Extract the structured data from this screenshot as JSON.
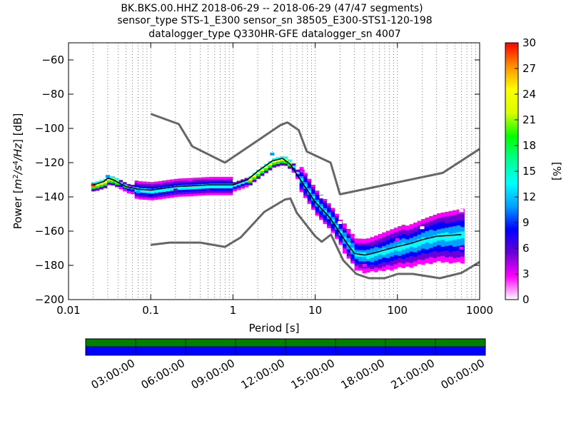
{
  "title_lines": [
    "BK.BKS.00.HHZ   2018-06-29 -- 2018-06-29  (47/47 segments)",
    "sensor_type STS-1_E300 sensor_sn 38505_E300-STS1-120-198",
    "datalogger_type Q330HR-GFE datalogger_sn 4007"
  ],
  "chart_data": [
    {
      "type": "heatmap",
      "xlabel": "Period [s]",
      "ylabel": "Power [m²/s⁴/Hz] [dB]",
      "ylabel_parts": {
        "prefix": "Power [",
        "main": "m",
        "sup1": "2",
        "mid": "/s",
        "sup2": "4",
        "tail": "/Hz",
        "suffix": "] [dB]"
      },
      "x_scale": "log",
      "xlim": [
        0.01,
        1000
      ],
      "ylim": [
        -200,
        -50
      ],
      "x_ticks": [
        {
          "v": 0.01,
          "label": "0.01"
        },
        {
          "v": 0.1,
          "label": "0.1"
        },
        {
          "v": 1,
          "label": "1"
        },
        {
          "v": 10,
          "label": "10"
        },
        {
          "v": 100,
          "label": "100"
        },
        {
          "v": 1000,
          "label": "1000"
        }
      ],
      "y_ticks": [
        {
          "v": -60,
          "label": "−60"
        },
        {
          "v": -80,
          "label": "−80"
        },
        {
          "v": -100,
          "label": "−100"
        },
        {
          "v": -120,
          "label": "−120"
        },
        {
          "v": -140,
          "label": "−140"
        },
        {
          "v": -160,
          "label": "−160"
        },
        {
          "v": -180,
          "label": "−180"
        },
        {
          "v": -200,
          "label": "−200"
        }
      ],
      "grid": "dotted vertical at log minor and major ticks",
      "colorbar": {
        "label": "[%]",
        "range": [
          0,
          30
        ],
        "ticks": [
          {
            "v": 0,
            "label": "0"
          },
          {
            "v": 3,
            "label": "3"
          },
          {
            "v": 6,
            "label": "6"
          },
          {
            "v": 9,
            "label": "9"
          },
          {
            "v": 12,
            "label": "12"
          },
          {
            "v": 15,
            "label": "15"
          },
          {
            "v": 18,
            "label": "18"
          },
          {
            "v": 21,
            "label": "21"
          },
          {
            "v": 24,
            "label": "24"
          },
          {
            "v": 27,
            "label": "27"
          },
          {
            "v": 30,
            "label": "30"
          }
        ],
        "colors": [
          "#ffffff",
          "#ff00ff",
          "#6a00d6",
          "#0000ff",
          "#00a0ff",
          "#00ffff",
          "#00ff90",
          "#00ff00",
          "#d8ff00",
          "#ffff00",
          "#ff9000",
          "#ff0000"
        ]
      },
      "series": [
        {
          "role": "noise model high",
          "color": "#666666",
          "points": [
            [
              0.1,
              -91.5
            ],
            [
              0.22,
              -97.5
            ],
            [
              0.32,
              -110.5
            ],
            [
              0.8,
              -120
            ],
            [
              3.8,
              -98
            ],
            [
              4.6,
              -96.5
            ],
            [
              6.3,
              -101
            ],
            [
              7.9,
              -113.5
            ],
            [
              15.4,
              -120
            ],
            [
              20,
              -138.5
            ],
            [
              354.8,
              -126
            ],
            [
              1000,
              -112
            ]
          ]
        },
        {
          "role": "noise model low",
          "color": "#666666",
          "points": [
            [
              0.1,
              -168
            ],
            [
              0.17,
              -166.7
            ],
            [
              0.4,
              -166.7
            ],
            [
              0.8,
              -169.2
            ],
            [
              1.24,
              -163.7
            ],
            [
              2.4,
              -148.8
            ],
            [
              4.3,
              -141.5
            ],
            [
              5,
              -141
            ],
            [
              6,
              -149.4
            ],
            [
              10,
              -163
            ],
            [
              12,
              -166.2
            ],
            [
              15.6,
              -162
            ],
            [
              21.9,
              -177
            ],
            [
              31.6,
              -185
            ],
            [
              45,
              -187.5
            ],
            [
              70,
              -187.5
            ],
            [
              101,
              -185
            ],
            [
              154,
              -185
            ],
            [
              328,
              -187.5
            ],
            [
              600,
              -184.4
            ],
            [
              1000,
              -178
            ]
          ]
        },
        {
          "role": "mode",
          "color": "#000000",
          "points": [
            [
              0.02,
              -133
            ],
            [
              0.027,
              -131
            ],
            [
              0.03,
              -129
            ],
            [
              0.035,
              -130
            ],
            [
              0.05,
              -134
            ],
            [
              0.07,
              -135.5
            ],
            [
              0.1,
              -136
            ],
            [
              0.2,
              -134
            ],
            [
              0.5,
              -133
            ],
            [
              1,
              -133
            ],
            [
              1.5,
              -130
            ],
            [
              2,
              -125
            ],
            [
              3,
              -119
            ],
            [
              4,
              -117.5
            ],
            [
              5,
              -121
            ],
            [
              6,
              -127
            ],
            [
              8,
              -136
            ],
            [
              10,
              -143
            ],
            [
              15,
              -152
            ],
            [
              20,
              -161
            ],
            [
              25,
              -168
            ],
            [
              30,
              -173
            ],
            [
              40,
              -174
            ],
            [
              50,
              -173
            ],
            [
              70,
              -171
            ],
            [
              100,
              -169
            ],
            [
              150,
              -167
            ],
            [
              200,
              -165
            ],
            [
              300,
              -163
            ],
            [
              600,
              -162
            ]
          ]
        }
      ],
      "density": [
        {
          "x": 0.02,
          "y": -133,
          "p": 30
        },
        {
          "x": 0.03,
          "y": -128,
          "p": 12
        },
        {
          "x": 0.05,
          "y": -134,
          "p": 20
        },
        {
          "x": 0.07,
          "y": -137,
          "p": 12
        },
        {
          "x": 0.1,
          "y": -139,
          "p": 8
        },
        {
          "x": 0.2,
          "y": -136,
          "p": 5
        },
        {
          "x": 0.3,
          "y": -130,
          "p": 3
        },
        {
          "x": 0.5,
          "y": -136,
          "p": 5
        },
        {
          "x": 3,
          "y": -115,
          "p": 12
        },
        {
          "x": 7,
          "y": -125,
          "p": 2
        },
        {
          "x": 12,
          "y": -140,
          "p": 1
        },
        {
          "x": 20,
          "y": -155,
          "p": 1
        },
        {
          "x": 40,
          "y": -180,
          "p": 3
        },
        {
          "x": 100,
          "y": -165,
          "p": 2
        },
        {
          "x": 200,
          "y": -158,
          "p": 1
        },
        {
          "x": 600,
          "y": -148,
          "p": 1
        },
        {
          "x": 600,
          "y": -170,
          "p": 3
        }
      ]
    },
    {
      "type": "timeline",
      "ticks": [
        "03:00:00",
        "06:00:00",
        "09:00:00",
        "12:00:00",
        "15:00:00",
        "18:00:00",
        "21:00:00",
        "00:00:00"
      ],
      "bands": [
        {
          "role": "data availability",
          "color": "#008000"
        },
        {
          "role": "processed segments",
          "color": "#0000ff"
        }
      ]
    }
  ]
}
